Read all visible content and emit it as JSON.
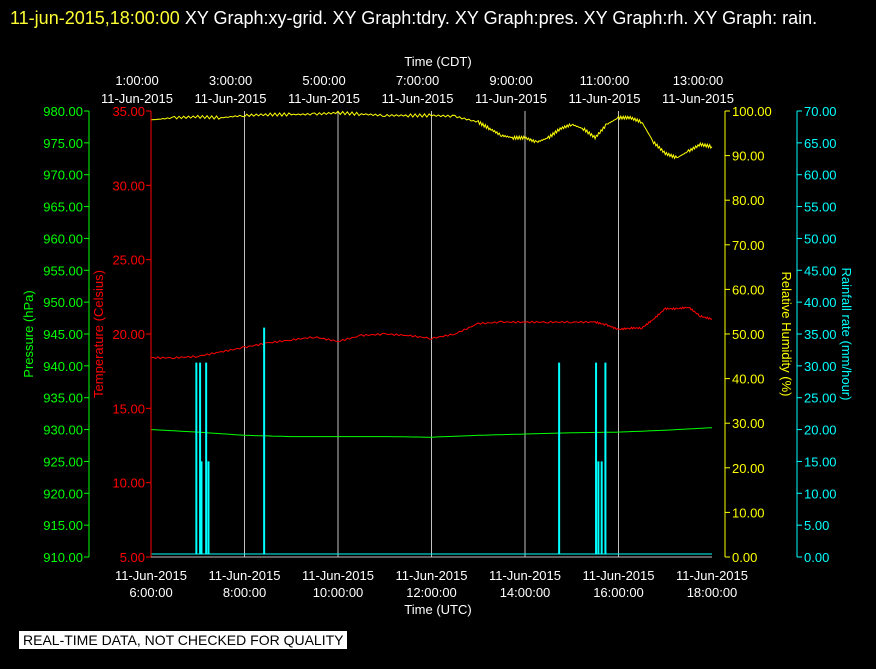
{
  "header": {
    "timestamp": "11-jun-2015,18:00:00",
    "graphs": " XY Graph:xy-grid.  XY Graph:tdry.  XY Graph:pres.  XY Graph:rh.  XY Graph: rain."
  },
  "banner": "REAL-TIME DATA, NOT CHECKED FOR QUALITY",
  "colors": {
    "pressure": "#00ff00",
    "temperature": "#ff0000",
    "humidity": "#ffff00",
    "rain": "#00ffff",
    "grid": "#c0c0c0",
    "text": "#ffffff",
    "background": "#000000"
  },
  "chart_data": {
    "type": "line",
    "grid": true,
    "x_top": {
      "label": "Time (CDT)",
      "ticks": [
        {
          "time": "1:00:00",
          "date": "11-Jun-2015"
        },
        {
          "time": "3:00:00",
          "date": "11-Jun-2015"
        },
        {
          "time": "5:00:00",
          "date": "11-Jun-2015"
        },
        {
          "time": "7:00:00",
          "date": "11-Jun-2015"
        },
        {
          "time": "9:00:00",
          "date": "11-Jun-2015"
        },
        {
          "time": "11:00:00",
          "date": "11-Jun-2015"
        },
        {
          "time": "13:00:00",
          "date": "11-Jun-2015"
        }
      ]
    },
    "x_bottom": {
      "label": "Time (UTC)",
      "range": [
        6,
        18
      ],
      "ticks": [
        {
          "date": "11-Jun-2015",
          "time": "6:00:00"
        },
        {
          "date": "11-Jun-2015",
          "time": "8:00:00"
        },
        {
          "date": "11-Jun-2015",
          "time": "10:00:00"
        },
        {
          "date": "11-Jun-2015",
          "time": "12:00:00"
        },
        {
          "date": "11-Jun-2015",
          "time": "14:00:00"
        },
        {
          "date": "11-Jun-2015",
          "time": "16:00:00"
        },
        {
          "date": "11-Jun-2015",
          "time": "18:00:00"
        }
      ]
    },
    "axes": [
      {
        "key": "pressure",
        "label": "Pressure (hPa)",
        "range": [
          910,
          980
        ],
        "ticks": [
          "910.00",
          "915.00",
          "920.00",
          "925.00",
          "930.00",
          "935.00",
          "940.00",
          "945.00",
          "950.00",
          "955.00",
          "960.00",
          "965.00",
          "970.00",
          "975.00",
          "980.00"
        ]
      },
      {
        "key": "temperature",
        "label": "Temperature (Celsius)",
        "range": [
          5,
          35
        ],
        "ticks": [
          "5.00",
          "10.00",
          "15.00",
          "20.00",
          "25.00",
          "30.00",
          "35.00"
        ]
      },
      {
        "key": "humidity",
        "label": "Relative Humidity (%)",
        "range": [
          0,
          100
        ],
        "ticks": [
          "0.00",
          "10.00",
          "20.00",
          "30.00",
          "40.00",
          "50.00",
          "60.00",
          "70.00",
          "80.00",
          "90.00",
          "100.00"
        ]
      },
      {
        "key": "rain",
        "label": "Rainfall rate (mm/hour)",
        "range": [
          0,
          70
        ],
        "ticks": [
          "0.00",
          "5.00",
          "10.00",
          "15.00",
          "20.00",
          "25.00",
          "30.00",
          "35.00",
          "40.00",
          "45.00",
          "50.00",
          "55.00",
          "60.00",
          "65.00",
          "70.00"
        ]
      }
    ],
    "series": [
      {
        "key": "humidity",
        "x": [
          6,
          6.5,
          7,
          7.5,
          8,
          8.5,
          9,
          9.5,
          10,
          10.5,
          11,
          11.5,
          12,
          12.5,
          13,
          13.25,
          13.5,
          13.75,
          14,
          14.25,
          14.5,
          14.75,
          15,
          15.25,
          15.5,
          15.75,
          16,
          16.25,
          16.5,
          16.75,
          17,
          17.25,
          17.5,
          17.75,
          18
        ],
        "y": [
          98,
          98.5,
          98.7,
          98.5,
          99,
          99.2,
          99.2,
          99.3,
          99.6,
          99.3,
          99,
          99,
          99,
          98.8,
          97.5,
          96,
          94.5,
          94,
          94,
          93,
          94,
          96,
          97,
          96,
          94,
          97,
          98.5,
          98.5,
          97.5,
          93,
          90.5,
          89.5,
          91,
          92.5,
          92
        ]
      },
      {
        "key": "temperature",
        "x": [
          6,
          6.5,
          7,
          7.5,
          8,
          8.5,
          9,
          9.5,
          10,
          10.5,
          11,
          11.5,
          12,
          12.5,
          13,
          13.5,
          14,
          14.5,
          15,
          15.5,
          15.75,
          16,
          16.25,
          16.5,
          16.75,
          17,
          17.25,
          17.5,
          17.75,
          18
        ],
        "y": [
          18.4,
          18.4,
          18.5,
          18.8,
          19.1,
          19.4,
          19.6,
          19.8,
          19.5,
          19.9,
          20.0,
          19.9,
          19.7,
          20.0,
          20.7,
          20.8,
          20.8,
          20.8,
          20.8,
          20.8,
          20.6,
          20.3,
          20.4,
          20.4,
          21.0,
          21.7,
          21.7,
          21.8,
          21.2,
          21.0
        ]
      },
      {
        "key": "pressure",
        "x": [
          6,
          7,
          8,
          9,
          10,
          11,
          12,
          13,
          14,
          15,
          16,
          17,
          18
        ],
        "y": [
          930.0,
          929.6,
          929.1,
          928.9,
          928.9,
          928.9,
          928.8,
          929.1,
          929.3,
          929.5,
          929.6,
          929.9,
          930.3
        ]
      },
      {
        "key": "rain",
        "type": "bar",
        "x": [
          6.97,
          7.05,
          7.08,
          7.18,
          7.23,
          8.42,
          14.73,
          15.52,
          15.57,
          15.64,
          15.72
        ],
        "y": [
          30.5,
          30.5,
          15,
          30.5,
          15,
          36,
          30.5,
          30.5,
          15,
          15,
          30.5
        ]
      }
    ]
  }
}
